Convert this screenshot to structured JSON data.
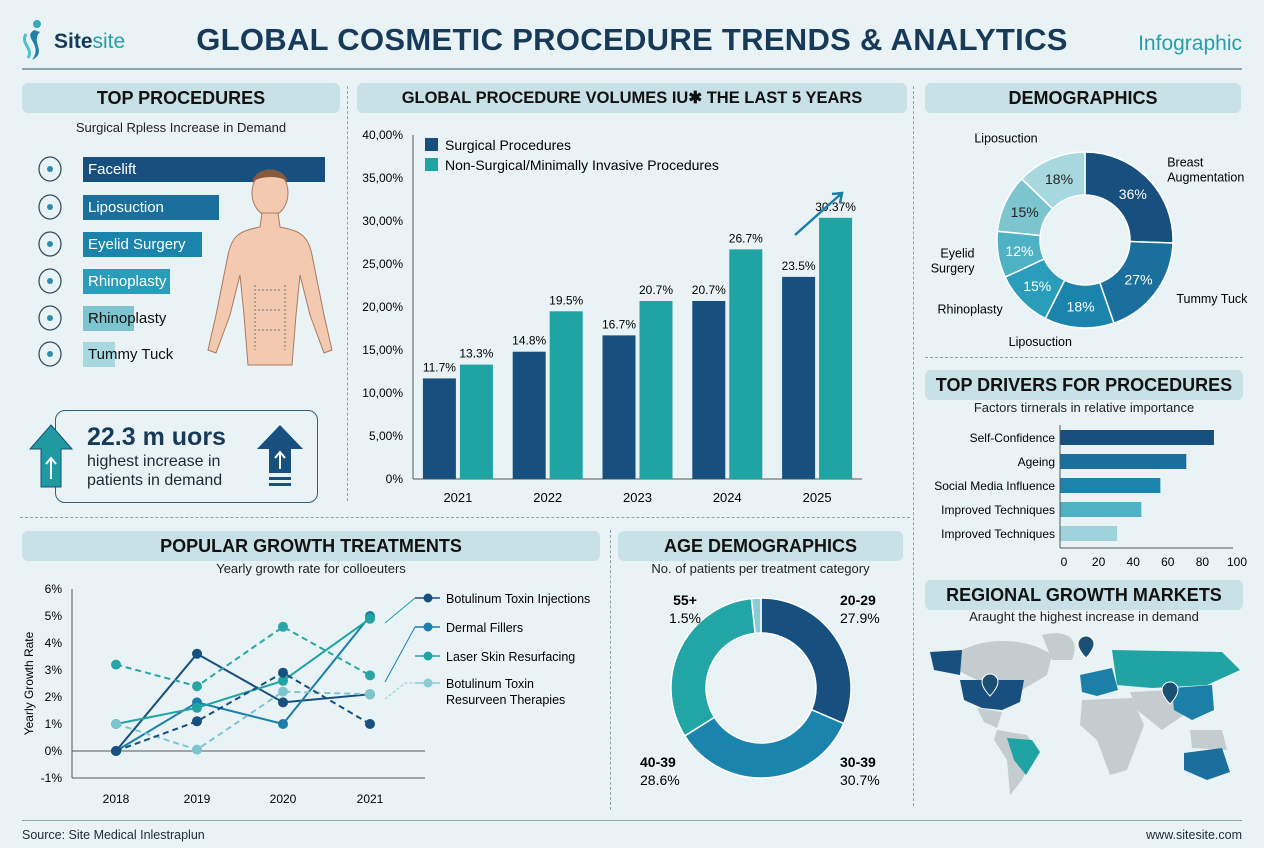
{
  "header": {
    "logo_text_bold": "Site",
    "logo_text_light": "site",
    "title": "GLOBAL COSMETIC PROCEDURE TRENDS & ANALYTICS",
    "tag": "Infographic"
  },
  "colors": {
    "navy": "#174f7e",
    "blue": "#1b7fa8",
    "teal": "#1fa3a3",
    "light_teal": "#5bb8c8",
    "pale": "#9fd3dc",
    "panel_header": "#c7e1e6",
    "background": "#e9f3f5",
    "title": "#173a59"
  },
  "top_procedures": {
    "heading": "TOP PROCEDURES",
    "subtitle": "Surgical Rpless Increase in Demand",
    "items": [
      {
        "label": "Facelift",
        "icon": "face-icon",
        "relative_demand": 100
      },
      {
        "label": "Liposuction",
        "icon": "abdomen-icon",
        "relative_demand": 56
      },
      {
        "label": "Eyelid Surgery",
        "icon": "eye-icon",
        "relative_demand": 49
      },
      {
        "label": "Rhinoplasty",
        "icon": "eyelid-icon",
        "relative_demand": 36
      },
      {
        "label": "Rhinoplasty",
        "icon": "nose-icon",
        "relative_demand": 21
      },
      {
        "label": "Tummy Tuck",
        "icon": "waist-icon",
        "relative_demand": 13
      }
    ],
    "stat_value": "22.3 m uors",
    "stat_line1": "highest increase in",
    "stat_line2": "patients in demand"
  },
  "chart_data": [
    {
      "id": "volumes",
      "type": "bar",
      "title": "GLOBAL PROCEDURE VOLUMES IU✱ THE LAST 5 YEARS",
      "categories": [
        "2021",
        "2022",
        "2023",
        "2024",
        "2025"
      ],
      "series": [
        {
          "name": "Surgical Procedures",
          "values": [
            11.7,
            14.8,
            16.7,
            20.7,
            23.5
          ],
          "labels": [
            "11.7%",
            "14.8%",
            "16.7%",
            "20.7%",
            "23.5%"
          ],
          "color": "#174f7e"
        },
        {
          "name": "Non-Surgical/Minimally Invasive Procedures",
          "values": [
            13.3,
            19.5,
            20.7,
            26.7,
            30.37
          ],
          "labels": [
            "13.3%",
            "19.5%",
            "20.7%",
            "26.7%",
            "30.37%"
          ],
          "color": "#1fa3a3"
        }
      ],
      "ylim": [
        0,
        40
      ],
      "yticks": [
        "0%",
        "5,00%",
        "10,00%",
        "15,00%",
        "20,00%",
        "25,00%",
        "30,00%",
        "35,00%",
        "40,00%"
      ],
      "legend": "top-left"
    },
    {
      "id": "demographics",
      "type": "pie",
      "title": "DEMOGRAPHICS",
      "slices": [
        {
          "label": "Breast Augmentation",
          "value": 36,
          "text": "36%",
          "color": "#174f7e"
        },
        {
          "label": "Tummy Tuck",
          "value": 27,
          "text": "27%",
          "color": "#1a6f9c"
        },
        {
          "label": "Liposuction",
          "value": 18,
          "text": "18%",
          "color": "#1b84ad"
        },
        {
          "label": "Rhinoplasty",
          "value": 15,
          "text": "15%",
          "color": "#2a9dbb"
        },
        {
          "label": "Eyelid Surgery",
          "value": 12,
          "text": "12%",
          "color": "#4fb1c4"
        },
        {
          "label": "",
          "value": 15,
          "text": "15%",
          "color": "#7cc5cf"
        },
        {
          "label": "Liposuction",
          "value": 18,
          "text": "18%",
          "color": "#a8d8df"
        }
      ]
    },
    {
      "id": "drivers",
      "type": "bar",
      "orientation": "horizontal",
      "title": "TOP DRIVERS FOR PROCEDURES",
      "subtitle": "Factors tirnerals in relative importance",
      "categories": [
        "Self-Confidence",
        "Ageing",
        "Social Media Influence",
        "Improved Techniques",
        "Improved Techniques"
      ],
      "values": [
        89,
        73,
        58,
        47,
        33
      ],
      "colors": [
        "#174f7e",
        "#1a6f9c",
        "#1b84ad",
        "#4fb1c4",
        "#9fd3dc"
      ],
      "xlim": [
        0,
        100
      ],
      "xticks": [
        "0",
        "20",
        "40",
        "60",
        "80",
        "100"
      ]
    },
    {
      "id": "growth",
      "type": "line",
      "title": "POPULAR GROWTH TREATMENTS",
      "subtitle": "Yearly growth rate for colloeuters",
      "ylabel": "Yearly Growth Rate",
      "x": [
        "2018",
        "2019",
        "2020",
        "2021"
      ],
      "ylim": [
        -1,
        6
      ],
      "yticks": [
        "-1%",
        "0%",
        "1%",
        "2%",
        "3%",
        "4%",
        "5%",
        "6%"
      ],
      "legend": "right",
      "series": [
        {
          "name": "Botulinum Toxin Injections",
          "values": [
            0,
            3.6,
            1.8,
            2.1
          ],
          "color": "#174f7e",
          "dashed": false
        },
        {
          "name": "Dermal Fillers",
          "values": [
            0,
            1.8,
            1.0,
            5.0
          ],
          "color": "#1b7fa8",
          "dashed": false
        },
        {
          "name": "Laser Skin Resurfacing",
          "values": [
            1.0,
            1.6,
            2.6,
            4.9
          ],
          "color": "#1fa3a3",
          "dashed": false
        },
        {
          "name": "Botulinum Toxin Resurveen Therapies",
          "values": [
            1.0,
            0.05,
            2.2,
            2.1
          ],
          "color": "#7cc5cf",
          "dashed": true
        },
        {
          "values": [
            0,
            1.1,
            2.9,
            1.0
          ],
          "color": "#174f7e",
          "dashed": true
        },
        {
          "values": [
            3.2,
            2.4,
            4.6,
            2.8
          ],
          "color": "#2aa5a5",
          "dashed": true
        }
      ],
      "legend_entries": [
        "Botulinum Toxin Injections",
        "Dermal Fillers",
        "Laser Skin Resurfacing",
        "Botulinum Toxin",
        "Resurveen Therapies"
      ]
    },
    {
      "id": "age",
      "type": "pie",
      "title": "AGE DEMOGRAPHICS",
      "subtitle": "No. of patients per treatment category",
      "slices": [
        {
          "label": "20-29",
          "value": 27.9,
          "text": "27.9%",
          "color": "#174f7e"
        },
        {
          "label": "30-39",
          "value": 30.7,
          "text": "30.7%",
          "color": "#1b84ad"
        },
        {
          "label": "40-39",
          "value": 28.6,
          "text": "28.6%",
          "color": "#22a5a5"
        },
        {
          "label": "55+",
          "value": 1.5,
          "text": "1.5%",
          "color": "#8ccbd3"
        }
      ]
    }
  ],
  "regional": {
    "heading": "REGIONAL GROWTH MARKETS",
    "subtitle": "Araught the highest increase in demand",
    "highlighted": [
      {
        "region": "United States",
        "color": "#174f7e"
      },
      {
        "region": "Europe/Russia",
        "color": "#1fa3a3"
      },
      {
        "region": "China",
        "color": "#1b7fa8"
      },
      {
        "region": "Brazil",
        "color": "#1fa3a3"
      },
      {
        "region": "Australia",
        "color": "#1a6f9c"
      }
    ]
  },
  "footer": {
    "source": "Source: Site Medical Inlestraplun",
    "url": "www.sitesite.com"
  }
}
